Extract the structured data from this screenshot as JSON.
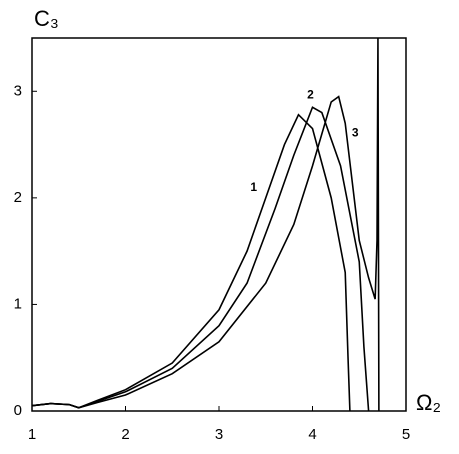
{
  "chart_data": {
    "type": "line",
    "x_label": "Ω₂",
    "y_label": "C₃",
    "xlim": [
      1,
      5
    ],
    "ylim": [
      0,
      3.5
    ],
    "xticks": [
      1,
      2,
      3,
      4,
      5
    ],
    "yticks": [
      0,
      1,
      2,
      3
    ],
    "grid": false,
    "series": [
      {
        "name": "1",
        "color": "#000000",
        "x": [
          1,
          1.2,
          1.4,
          1.5,
          1.7,
          2.0,
          2.5,
          3.0,
          3.3,
          3.5,
          3.7,
          3.85,
          4.0,
          4.2,
          4.35,
          4.38,
          4.4
        ],
        "values": [
          0.05,
          0.07,
          0.06,
          0.03,
          0.1,
          0.2,
          0.45,
          0.95,
          1.5,
          2.0,
          2.5,
          2.78,
          2.65,
          2.0,
          1.3,
          0.5,
          0
        ]
      },
      {
        "name": "2",
        "color": "#000000",
        "x": [
          1,
          1.2,
          1.4,
          1.5,
          1.7,
          2.0,
          2.5,
          3.0,
          3.3,
          3.6,
          3.8,
          4.0,
          4.1,
          4.3,
          4.5,
          4.55,
          4.6
        ],
        "values": [
          0.05,
          0.07,
          0.06,
          0.03,
          0.09,
          0.18,
          0.4,
          0.8,
          1.2,
          1.9,
          2.4,
          2.85,
          2.8,
          2.3,
          1.4,
          0.6,
          0
        ]
      },
      {
        "name": "3",
        "color": "#000000",
        "x": [
          1,
          1.2,
          1.4,
          1.5,
          1.7,
          2.0,
          2.5,
          3.0,
          3.5,
          3.8,
          4.0,
          4.2,
          4.28,
          4.35,
          4.5,
          4.6,
          4.67,
          4.69,
          4.7,
          4.71
        ],
        "values": [
          0.05,
          0.07,
          0.06,
          0.03,
          0.08,
          0.15,
          0.35,
          0.65,
          1.2,
          1.75,
          2.3,
          2.9,
          2.95,
          2.7,
          1.6,
          1.25,
          1.05,
          1.6,
          3.5,
          0
        ]
      }
    ]
  }
}
